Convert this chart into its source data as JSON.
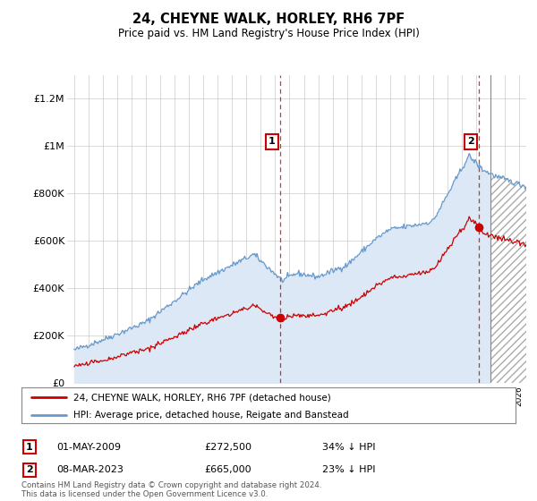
{
  "title": "24, CHEYNE WALK, HORLEY, RH6 7PF",
  "subtitle": "Price paid vs. HM Land Registry's House Price Index (HPI)",
  "hpi_color": "#6699cc",
  "hpi_fill_color": "#dce8f5",
  "price_color": "#cc0000",
  "plot_bg_color": "#ffffff",
  "ylim": [
    0,
    1300000
  ],
  "yticks": [
    0,
    200000,
    400000,
    600000,
    800000,
    1000000,
    1200000
  ],
  "ytick_labels": [
    "£0",
    "£200K",
    "£400K",
    "£600K",
    "£800K",
    "£1M",
    "£1.2M"
  ],
  "sale1": {
    "date_num": 2009.33,
    "price": 272500,
    "label": "1",
    "display_date": "01-MAY-2009",
    "display_price": "£272,500",
    "pct": "34% ↓ HPI"
  },
  "sale2": {
    "date_num": 2023.18,
    "price": 665000,
    "label": "2",
    "display_date": "08-MAR-2023",
    "display_price": "£665,000",
    "pct": "23% ↓ HPI"
  },
  "legend_line1": "24, CHEYNE WALK, HORLEY, RH6 7PF (detached house)",
  "legend_line2": "HPI: Average price, detached house, Reigate and Banstead",
  "footer": "Contains HM Land Registry data © Crown copyright and database right 2024.\nThis data is licensed under the Open Government Licence v3.0.",
  "xmin": 1994.5,
  "xmax": 2026.5,
  "hatch_start": 2024.0
}
